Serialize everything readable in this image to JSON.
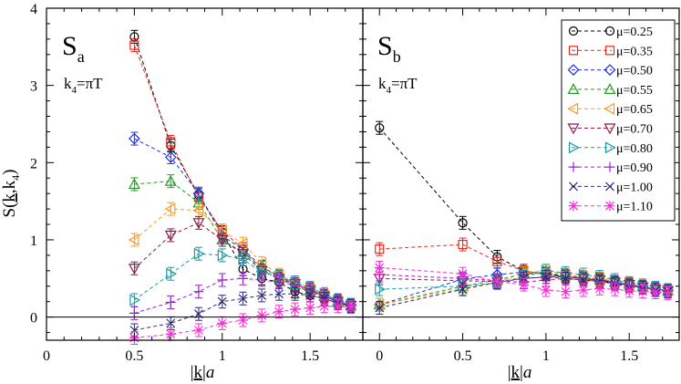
{
  "chart_data": [
    {
      "type": "scatter",
      "panel": "left",
      "label": "S",
      "label_sub": "a",
      "k4_label": "k",
      "k4_sub": "4",
      "k4_value": "=πT",
      "ylabel": "S(k,k4)",
      "ylabel_parts": {
        "pre": "S(",
        "k": "k",
        "comma": ",",
        "k2": "k",
        "sub": "4",
        "post": ")"
      },
      "xlabel_parts": {
        "bar1": "|",
        "k": "k",
        "bar2": "|",
        "a": "a"
      },
      "xlim": [
        0,
        1.8
      ],
      "ylim": [
        -0.3,
        4
      ],
      "xticks": [
        "0",
        "0.5",
        "1",
        "1.5"
      ],
      "yticks": [
        "0",
        "1",
        "2",
        "3",
        "4"
      ],
      "grid": false,
      "series": [
        {
          "name": "μ=0.25",
          "x": [
            0.5,
            0.707,
            0.866,
            1.0,
            1.118,
            1.225,
            1.323,
            1.414,
            1.5,
            1.581,
            1.658,
            1.732
          ],
          "y": [
            3.63,
            2.22,
            1.58,
            1.1,
            0.62,
            0.5,
            0.45,
            0.33,
            0.28,
            0.24,
            0.18,
            0.14
          ]
        },
        {
          "name": "μ=0.35",
          "x": [
            0.5,
            0.707,
            0.866,
            1.0,
            1.118,
            1.225,
            1.323,
            1.414,
            1.5,
            1.581,
            1.658,
            1.732
          ],
          "y": [
            3.52,
            2.27,
            1.55,
            1.12,
            0.88,
            0.6,
            0.5,
            0.4,
            0.33,
            0.26,
            0.2,
            0.15
          ]
        },
        {
          "name": "μ=0.50",
          "x": [
            0.5,
            0.707,
            0.866,
            1.0,
            1.118,
            1.225,
            1.323,
            1.414,
            1.5,
            1.581,
            1.658,
            1.732
          ],
          "y": [
            2.31,
            2.07,
            1.6,
            1.05,
            0.88,
            0.65,
            0.53,
            0.42,
            0.35,
            0.27,
            0.2,
            0.15
          ]
        },
        {
          "name": "μ=0.55",
          "x": [
            0.5,
            0.707,
            0.866,
            1.0,
            1.118,
            1.225,
            1.323,
            1.414,
            1.5,
            1.581,
            1.658,
            1.732
          ],
          "y": [
            1.72,
            1.76,
            1.48,
            1.0,
            0.84,
            0.64,
            0.52,
            0.42,
            0.35,
            0.27,
            0.2,
            0.15
          ]
        },
        {
          "name": "μ=0.65",
          "x": [
            0.5,
            0.707,
            0.866,
            1.0,
            1.118,
            1.225,
            1.323,
            1.414,
            1.5,
            1.581,
            1.658,
            1.732
          ],
          "y": [
            1.0,
            1.4,
            1.38,
            1.12,
            0.95,
            0.7,
            0.55,
            0.45,
            0.37,
            0.28,
            0.21,
            0.15
          ]
        },
        {
          "name": "μ=0.70",
          "x": [
            0.5,
            0.707,
            0.866,
            1.0,
            1.118,
            1.225,
            1.323,
            1.414,
            1.5,
            1.581,
            1.658,
            1.732
          ],
          "y": [
            0.63,
            1.06,
            1.22,
            1.0,
            0.82,
            0.6,
            0.5,
            0.43,
            0.35,
            0.27,
            0.2,
            0.15
          ]
        },
        {
          "name": "μ=0.80",
          "x": [
            0.5,
            0.707,
            0.866,
            1.0,
            1.118,
            1.225,
            1.323,
            1.414,
            1.5,
            1.581,
            1.658,
            1.732
          ],
          "y": [
            0.22,
            0.56,
            0.82,
            0.8,
            0.75,
            0.58,
            0.52,
            0.45,
            0.38,
            0.3,
            0.22,
            0.16
          ]
        },
        {
          "name": "μ=0.90",
          "x": [
            0.5,
            0.707,
            0.866,
            1.0,
            1.118,
            1.225,
            1.323,
            1.414,
            1.5,
            1.581,
            1.658,
            1.732
          ],
          "y": [
            0.05,
            0.19,
            0.33,
            0.48,
            0.5,
            0.48,
            0.45,
            0.42,
            0.36,
            0.28,
            0.21,
            0.15
          ]
        },
        {
          "name": "μ=1.00",
          "x": [
            0.5,
            0.707,
            0.866,
            1.0,
            1.118,
            1.225,
            1.323,
            1.414,
            1.5,
            1.581,
            1.658,
            1.732
          ],
          "y": [
            -0.17,
            -0.08,
            0.04,
            0.2,
            0.24,
            0.28,
            0.3,
            0.3,
            0.28,
            0.24,
            0.18,
            0.14
          ]
        },
        {
          "name": "μ=1.10",
          "x": [
            0.5,
            0.707,
            0.866,
            1.0,
            1.118,
            1.225,
            1.323,
            1.414,
            1.5,
            1.581,
            1.658,
            1.732
          ],
          "y": [
            -0.27,
            -0.22,
            -0.17,
            -0.08,
            -0.04,
            0.02,
            0.07,
            0.1,
            0.12,
            0.14,
            0.14,
            0.13
          ]
        }
      ]
    },
    {
      "type": "scatter",
      "panel": "right",
      "label": "S",
      "label_sub": "b",
      "k4_label": "k",
      "k4_sub": "4",
      "k4_value": "=πT",
      "xlabel_parts": {
        "bar1": "|",
        "k": "k",
        "bar2": "|",
        "a": "a"
      },
      "xlim": [
        -0.1,
        1.8
      ],
      "ylim": [
        -0.3,
        4
      ],
      "xticks": [
        "0",
        "0.5",
        "1",
        "1.5"
      ],
      "grid": false,
      "legend_position": "top-right",
      "series": [
        {
          "name": "μ=0.25",
          "x": [
            0,
            0.5,
            0.707,
            0.866,
            1.0,
            1.118,
            1.225,
            1.323,
            1.414,
            1.5,
            1.581,
            1.658,
            1.732
          ],
          "y": [
            2.45,
            1.22,
            0.78,
            0.6,
            0.55,
            0.52,
            0.5,
            0.47,
            0.44,
            0.42,
            0.38,
            0.36,
            0.34
          ]
        },
        {
          "name": "μ=0.35",
          "x": [
            0,
            0.5,
            0.707,
            0.866,
            1.0,
            1.118,
            1.225,
            1.323,
            1.414,
            1.5,
            1.581,
            1.658,
            1.732
          ],
          "y": [
            0.88,
            0.94,
            0.72,
            0.6,
            0.55,
            0.52,
            0.5,
            0.47,
            0.44,
            0.42,
            0.38,
            0.36,
            0.34
          ]
        },
        {
          "name": "μ=0.50",
          "x": [
            0,
            0.5,
            0.707,
            0.866,
            1.0,
            1.118,
            1.225,
            1.323,
            1.414,
            1.5,
            1.581,
            1.658,
            1.732
          ],
          "y": [
            0.16,
            0.49,
            0.55,
            0.58,
            0.56,
            0.53,
            0.5,
            0.48,
            0.45,
            0.42,
            0.39,
            0.36,
            0.34
          ]
        },
        {
          "name": "μ=0.55",
          "x": [
            0,
            0.5,
            0.707,
            0.866,
            1.0,
            1.118,
            1.225,
            1.323,
            1.414,
            1.5,
            1.581,
            1.658,
            1.732
          ],
          "y": [
            0.16,
            0.4,
            0.48,
            0.56,
            0.57,
            0.54,
            0.52,
            0.49,
            0.46,
            0.43,
            0.4,
            0.37,
            0.34
          ]
        },
        {
          "name": "μ=0.65",
          "x": [
            0,
            0.5,
            0.707,
            0.866,
            1.0,
            1.118,
            1.225,
            1.323,
            1.414,
            1.5,
            1.581,
            1.658,
            1.732
          ],
          "y": [
            0.16,
            0.37,
            0.45,
            0.57,
            0.6,
            0.55,
            0.52,
            0.5,
            0.46,
            0.43,
            0.4,
            0.37,
            0.35
          ]
        },
        {
          "name": "μ=0.70",
          "x": [
            0,
            0.5,
            0.707,
            0.866,
            1.0,
            1.118,
            1.225,
            1.323,
            1.414,
            1.5,
            1.581,
            1.658,
            1.732
          ],
          "y": [
            0.5,
            0.47,
            0.46,
            0.5,
            0.52,
            0.52,
            0.5,
            0.48,
            0.45,
            0.42,
            0.39,
            0.36,
            0.34
          ]
        },
        {
          "name": "μ=0.80",
          "x": [
            0,
            0.5,
            0.707,
            0.866,
            1.0,
            1.118,
            1.225,
            1.323,
            1.414,
            1.5,
            1.581,
            1.658,
            1.732
          ],
          "y": [
            0.36,
            0.4,
            0.44,
            0.52,
            0.6,
            0.57,
            0.55,
            0.52,
            0.48,
            0.44,
            0.41,
            0.38,
            0.35
          ]
        },
        {
          "name": "μ=0.90",
          "x": [
            0,
            0.5,
            0.707,
            0.866,
            1.0,
            1.118,
            1.225,
            1.323,
            1.414,
            1.5,
            1.581,
            1.658,
            1.732
          ],
          "y": [
            0.55,
            0.5,
            0.47,
            0.45,
            0.48,
            0.5,
            0.48,
            0.46,
            0.44,
            0.41,
            0.38,
            0.36,
            0.34
          ]
        },
        {
          "name": "μ=1.00",
          "x": [
            0,
            0.5,
            0.707,
            0.866,
            1.0,
            1.118,
            1.225,
            1.323,
            1.414,
            1.5,
            1.581,
            1.658,
            1.732
          ],
          "y": [
            0.12,
            0.36,
            0.45,
            0.5,
            0.52,
            0.5,
            0.48,
            0.46,
            0.43,
            0.4,
            0.38,
            0.35,
            0.33
          ]
        },
        {
          "name": "μ=1.10",
          "x": [
            0,
            0.5,
            0.707,
            0.866,
            1.0,
            1.118,
            1.225,
            1.323,
            1.414,
            1.5,
            1.581,
            1.658,
            1.732
          ],
          "y": [
            0.64,
            0.56,
            0.46,
            0.42,
            0.35,
            0.33,
            0.35,
            0.37,
            0.36,
            0.34,
            0.33,
            0.32,
            0.31
          ]
        }
      ]
    }
  ],
  "styles": {
    "colors": [
      "#000000",
      "#e8281f",
      "#1e2fe8",
      "#1f9e1f",
      "#ff9a1f",
      "#8b1a4b",
      "#1a9aa6",
      "#9b1fd8",
      "#2a2a7a",
      "#ff2ad8"
    ],
    "markers": [
      "circle",
      "square",
      "diamond",
      "triangle-up",
      "triangle-left",
      "triangle-down",
      "triangle-right",
      "plus",
      "cross",
      "asterisk"
    ]
  }
}
